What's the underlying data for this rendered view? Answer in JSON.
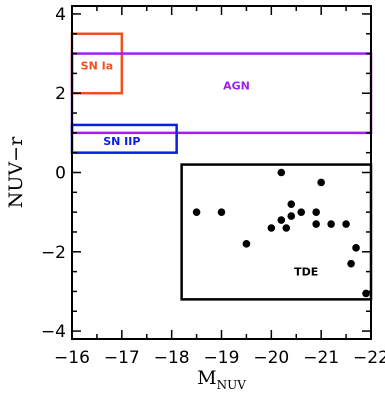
{
  "chart_data": {
    "type": "scatter",
    "xlabel_main": "M",
    "xlabel_sub": "NUV",
    "ylabel": "NUV−r",
    "xlim": [
      -16,
      -22
    ],
    "ylim": [
      -4.2,
      4.2
    ],
    "xticks": [
      -16,
      -17,
      -18,
      -19,
      -20,
      -21,
      -22
    ],
    "xtick_labels": [
      "−16",
      "−17",
      "−18",
      "−19",
      "−20",
      "−21",
      "−22"
    ],
    "yticks": [
      -4,
      -2,
      0,
      2,
      4
    ],
    "ytick_labels": [
      "−4",
      "−2",
      "0",
      "2",
      "4"
    ],
    "regions": [
      {
        "label": "SN Ia",
        "color": "#f0501e",
        "x": [
          -16.0,
          -17.0
        ],
        "y": [
          2.0,
          3.5
        ],
        "label_at": [
          -16.5,
          2.6
        ]
      },
      {
        "label": "AGN",
        "color": "#a020f0",
        "x": [
          -16.0,
          -22.0
        ],
        "y": [
          1.0,
          3.0
        ],
        "label_at": [
          -19.3,
          2.1
        ]
      },
      {
        "label": "SN IIP",
        "color": "#0a1ee6",
        "x": [
          -16.0,
          -18.1
        ],
        "y": [
          0.5,
          1.2
        ],
        "label_at": [
          -17.0,
          0.7
        ]
      },
      {
        "label": "TDE",
        "color": "#000000",
        "x": [
          -18.2,
          -22.0
        ],
        "y": [
          -3.2,
          0.2
        ],
        "label_at": [
          -20.7,
          -2.6
        ]
      }
    ],
    "points": {
      "x": [
        -18.5,
        -19.0,
        -19.5,
        -20.0,
        -20.2,
        -20.3,
        -20.2,
        -20.4,
        -20.4,
        -20.6,
        -20.9,
        -21.2,
        -20.9,
        -21.0,
        -21.5,
        -21.7,
        -21.6,
        -21.9
      ],
      "y": [
        -1.0,
        -1.0,
        -1.8,
        -1.4,
        -1.2,
        -1.4,
        0.0,
        -0.8,
        -1.1,
        -1.0,
        -1.0,
        -1.3,
        -1.3,
        -0.25,
        -1.3,
        -1.9,
        -2.3,
        -3.05
      ]
    }
  }
}
